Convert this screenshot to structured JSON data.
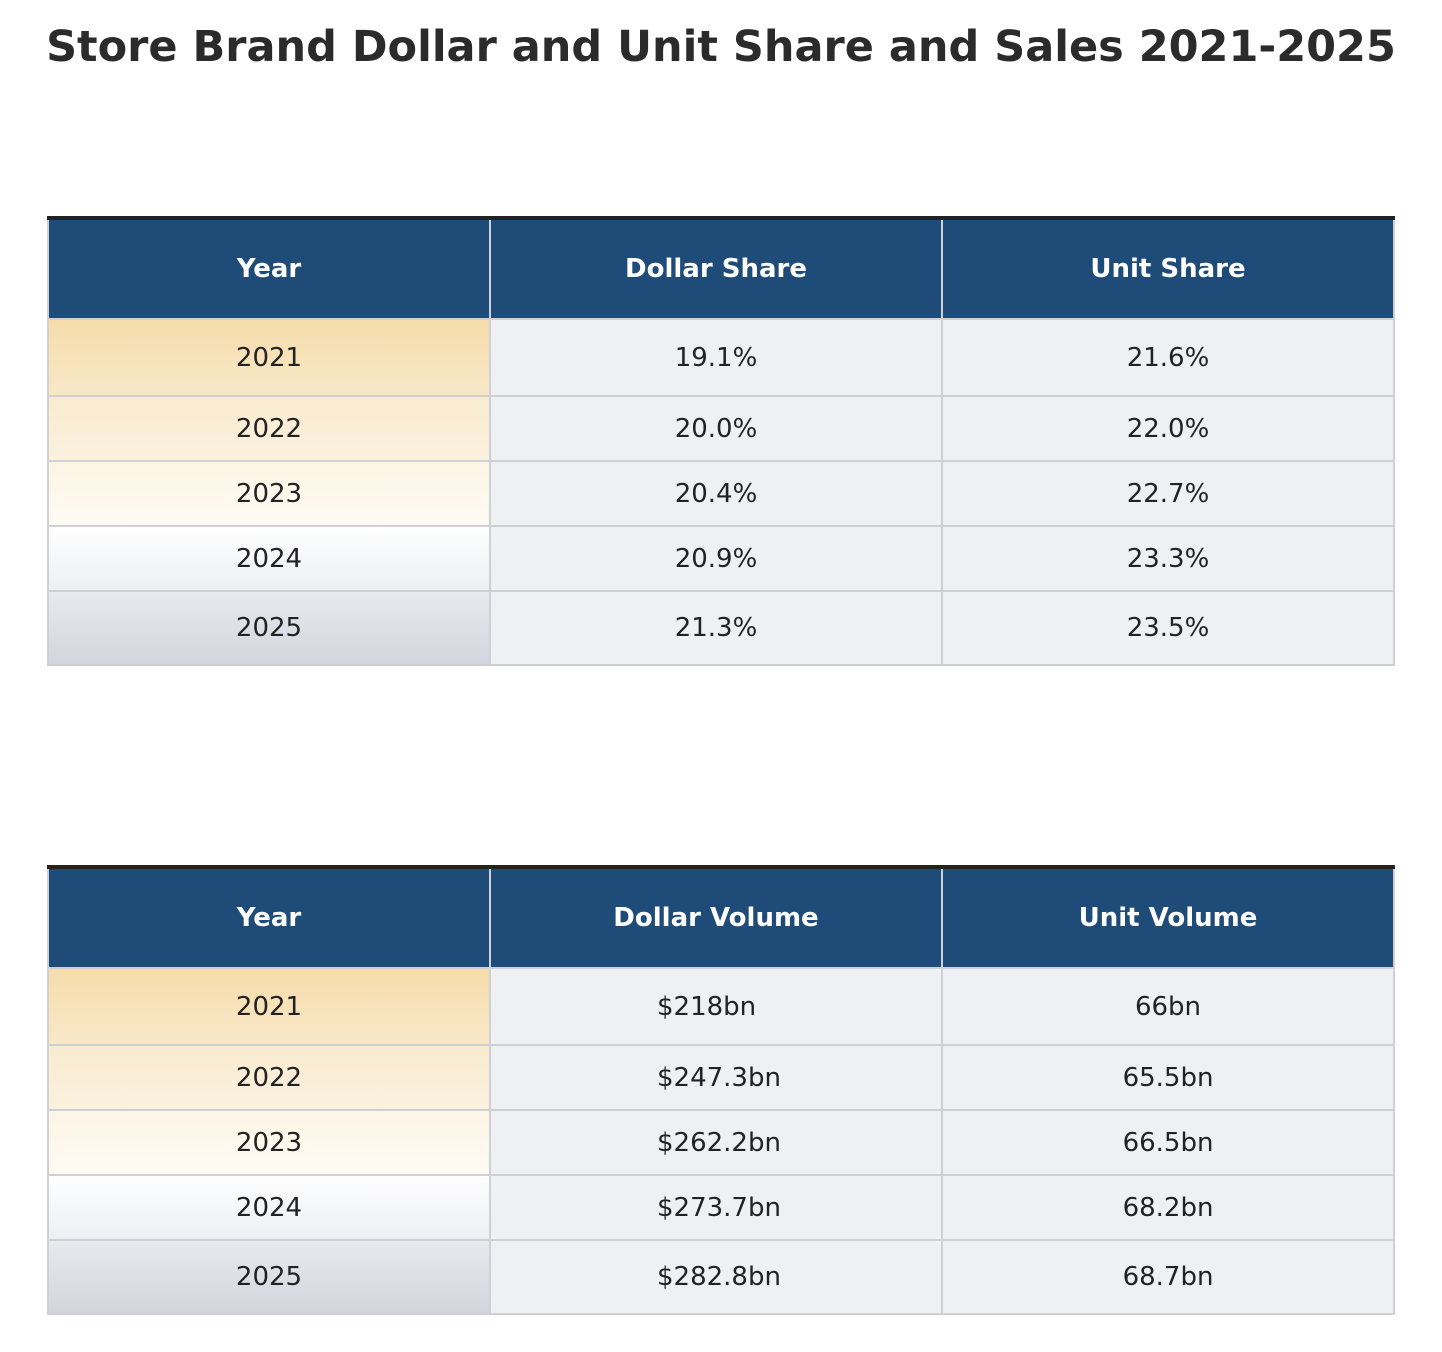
{
  "title": "Store Brand Dollar and Unit Share and Sales 2021-2025",
  "tables": [
    {
      "header": [
        "Year",
        "Dollar Share",
        "Unit Share"
      ],
      "rows": [
        [
          "2021",
          "19.1%",
          "21.6%"
        ],
        [
          "2022",
          "20.0%",
          "22.0%"
        ],
        [
          "2023",
          "20.4%",
          "22.7%"
        ],
        [
          "2024",
          "20.9%",
          "23.3%"
        ],
        [
          "2025",
          "21.3%",
          "23.5%"
        ]
      ]
    },
    {
      "header": [
        "Year",
        "Dollar Volume",
        "Unit Volume"
      ],
      "rows": [
        [
          "2021",
          "$218bn",
          "66bn"
        ],
        [
          "2022",
          "$247.3bn",
          "65.5bn"
        ],
        [
          "2023",
          "$262.2bn",
          "66.5bn"
        ],
        [
          "2024",
          "$273.7bn",
          "68.2bn"
        ],
        [
          "2025",
          "$282.8bn",
          "68.7bn"
        ]
      ]
    }
  ]
}
